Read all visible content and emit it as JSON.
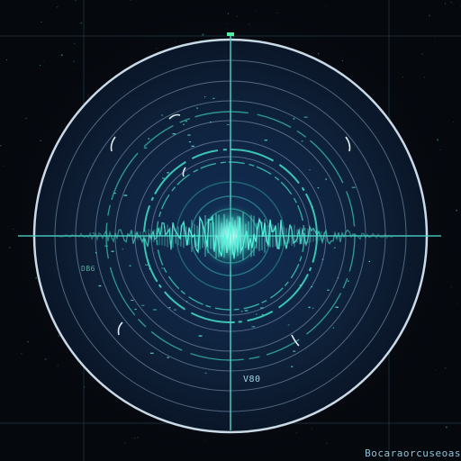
{
  "display": {
    "inner_label": "V80",
    "left_label": "DB6",
    "bottom_right_caption": "Bocaraorcuseoas"
  },
  "colors": {
    "background": "#05080d",
    "disc": "#0e2038",
    "rim": "#c9d9e6",
    "ring": "#8aa6c2",
    "crosshair": "#4fd1c5",
    "waveform": "#3fe0c8",
    "core_glow": "#7ff5e6",
    "grid": "#1b2a36"
  },
  "icons": {
    "center": "radar-core-icon"
  }
}
